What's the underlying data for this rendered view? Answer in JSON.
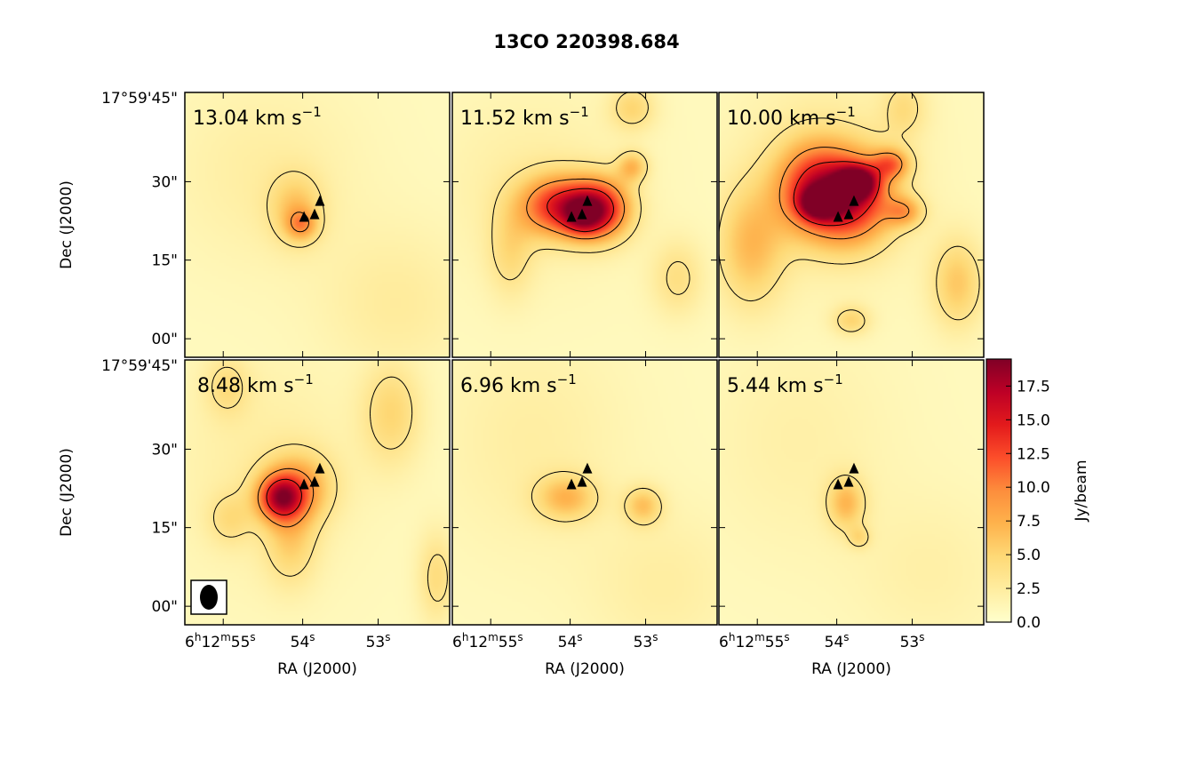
{
  "chart_data": {
    "type": "heatmap",
    "title": "13CO 220398.684",
    "xlabel": "RA (J2000)",
    "ylabel": "Dec (J2000)",
    "x_ticks": [
      "6h12m55s",
      "54s",
      "53s"
    ],
    "y_ticks": [
      "17°59'45\"",
      "30\"",
      "15\"",
      "00\""
    ],
    "colorbar": {
      "label": "Jy/beam",
      "range": [
        0.0,
        19.5
      ],
      "ticks": [
        "0.0",
        "2.5",
        "5.0",
        "7.5",
        "10.0",
        "12.5",
        "15.0",
        "17.5"
      ],
      "colors": [
        "#ffffcc",
        "#ffeda0",
        "#fed976",
        "#feb24c",
        "#fd8d3c",
        "#fc4e2a",
        "#e31a1c",
        "#bd0026",
        "#800026"
      ]
    },
    "panels": [
      {
        "velocity": "13.04",
        "unit": "km s",
        "exponent": "−1",
        "blobs": [
          [
            0.42,
            0.44,
            0.07,
            0.09,
            4.5
          ],
          [
            0.44,
            0.5,
            0.04,
            0.04,
            5.5
          ],
          [
            0.3,
            0.3,
            0.25,
            0.25,
            1.5
          ],
          [
            0.8,
            0.8,
            0.2,
            0.2,
            1.8
          ]
        ],
        "sources": [
          [
            0.45,
            0.47
          ],
          [
            0.49,
            0.46
          ],
          [
            0.51,
            0.41
          ]
        ]
      },
      {
        "velocity": "11.52",
        "unit": "km s",
        "exponent": "−1",
        "blobs": [
          [
            0.4,
            0.43,
            0.1,
            0.08,
            12
          ],
          [
            0.56,
            0.44,
            0.08,
            0.08,
            13
          ],
          [
            0.49,
            0.47,
            0.05,
            0.05,
            6
          ],
          [
            0.22,
            0.6,
            0.06,
            0.12,
            3.2
          ],
          [
            0.68,
            0.28,
            0.04,
            0.04,
            5.5
          ],
          [
            0.85,
            0.7,
            0.07,
            0.1,
            3.2
          ],
          [
            0.68,
            0.06,
            0.06,
            0.06,
            4
          ],
          [
            0.3,
            0.35,
            0.25,
            0.25,
            1.5
          ]
        ],
        "sources": [
          [
            0.45,
            0.47
          ],
          [
            0.49,
            0.46
          ],
          [
            0.51,
            0.41
          ]
        ]
      },
      {
        "velocity": "10.00",
        "unit": "km s",
        "exponent": "−1",
        "blobs": [
          [
            0.35,
            0.36,
            0.1,
            0.12,
            10
          ],
          [
            0.5,
            0.4,
            0.11,
            0.12,
            13
          ],
          [
            0.52,
            0.34,
            0.05,
            0.04,
            14
          ],
          [
            0.38,
            0.42,
            0.05,
            0.04,
            11
          ],
          [
            0.12,
            0.58,
            0.09,
            0.16,
            5.5
          ],
          [
            0.9,
            0.72,
            0.07,
            0.12,
            5
          ],
          [
            0.65,
            0.27,
            0.05,
            0.04,
            7.5
          ],
          [
            0.7,
            0.45,
            0.05,
            0.04,
            6
          ],
          [
            0.7,
            0.06,
            0.06,
            0.08,
            3
          ],
          [
            0.5,
            0.86,
            0.05,
            0.04,
            4
          ],
          [
            0.4,
            0.3,
            0.25,
            0.3,
            1.8
          ]
        ],
        "sources": [
          [
            0.45,
            0.47
          ],
          [
            0.49,
            0.46
          ],
          [
            0.51,
            0.41
          ]
        ]
      },
      {
        "velocity": "8.48",
        "unit": "km s",
        "exponent": "−1",
        "blobs": [
          [
            0.36,
            0.52,
            0.06,
            0.06,
            12
          ],
          [
            0.43,
            0.48,
            0.09,
            0.09,
            6.5
          ],
          [
            0.4,
            0.68,
            0.07,
            0.12,
            4
          ],
          [
            0.78,
            0.2,
            0.08,
            0.14,
            4
          ],
          [
            0.95,
            0.82,
            0.05,
            0.12,
            3.5
          ],
          [
            0.17,
            0.6,
            0.06,
            0.07,
            2.8
          ],
          [
            0.16,
            0.1,
            0.06,
            0.08,
            3
          ],
          [
            0.3,
            0.4,
            0.25,
            0.3,
            1.5
          ]
        ],
        "sources": [
          [
            0.45,
            0.47
          ],
          [
            0.49,
            0.46
          ],
          [
            0.51,
            0.41
          ]
        ]
      },
      {
        "velocity": "6.96",
        "unit": "km s",
        "exponent": "−1",
        "blobs": [
          [
            0.43,
            0.52,
            0.08,
            0.06,
            5.5
          ],
          [
            0.72,
            0.55,
            0.05,
            0.05,
            5
          ],
          [
            0.3,
            0.3,
            0.25,
            0.3,
            1.5
          ],
          [
            0.8,
            0.85,
            0.2,
            0.2,
            1.5
          ]
        ],
        "sources": [
          [
            0.45,
            0.47
          ],
          [
            0.49,
            0.46
          ],
          [
            0.51,
            0.41
          ]
        ]
      },
      {
        "velocity": "5.44",
        "unit": "km s",
        "exponent": "−1",
        "blobs": [
          [
            0.48,
            0.54,
            0.05,
            0.07,
            5.5
          ],
          [
            0.53,
            0.67,
            0.03,
            0.03,
            3
          ],
          [
            0.3,
            0.3,
            0.25,
            0.3,
            1.2
          ],
          [
            0.8,
            0.8,
            0.2,
            0.2,
            1.2
          ]
        ],
        "sources": [
          [
            0.45,
            0.47
          ],
          [
            0.49,
            0.46
          ],
          [
            0.51,
            0.41
          ]
        ]
      }
    ]
  }
}
